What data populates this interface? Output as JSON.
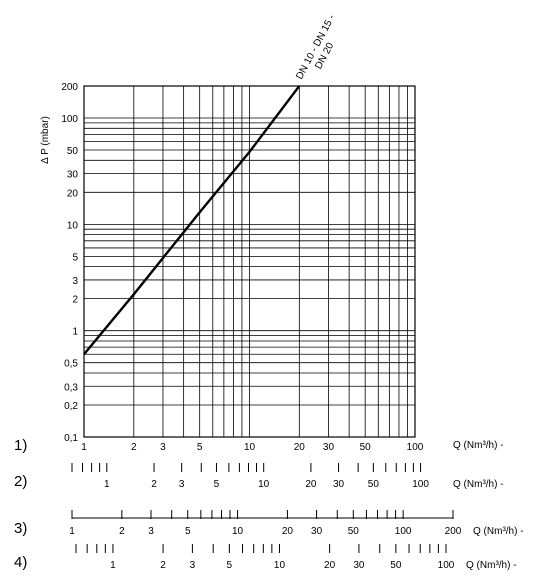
{
  "chart_data": {
    "type": "line",
    "x_scale": "log",
    "y_scale": "log",
    "ylabel": "Δ P (mbar)",
    "xlabel": "Q (Nm³/h) -",
    "xlim": [
      1,
      100
    ],
    "ylim": [
      0.1,
      200
    ],
    "x_ticks": [
      "1",
      "2",
      "3",
      "5",
      "10",
      "20",
      "30",
      "50",
      "100"
    ],
    "y_ticks": [
      "200",
      "100",
      "50",
      "30",
      "20",
      "10",
      "5",
      "3",
      "2",
      "1",
      "0,5",
      "0,3",
      "0,2",
      "0,1"
    ],
    "grid": true,
    "series": [
      {
        "name": "DN 10 - DN 15 - DN 20",
        "x": [
          1,
          2,
          5,
          10,
          20
        ],
        "y": [
          0.6,
          2.2,
          13,
          48,
          200
        ]
      }
    ],
    "extra_scales": [
      {
        "number": "1)",
        "ticks": [
          "1",
          "2",
          "3",
          "5",
          "10",
          "20",
          "30",
          "50",
          "100"
        ],
        "unit": "Q (Nm³/h) -",
        "min": 1,
        "max": 100
      },
      {
        "number": "2)",
        "ticks": [
          "1",
          "2",
          "3",
          "5",
          "10",
          "20",
          "30",
          "50",
          "100"
        ],
        "unit": "Q (Nm³/h) -",
        "min": 0.6,
        "max": 120
      },
      {
        "number": "3)",
        "ticks": [
          "1",
          "2",
          "3",
          "5",
          "10",
          "20",
          "30",
          "50",
          "100",
          "200"
        ],
        "unit": "Q (Nm³/h) -",
        "min": 1,
        "max": 200
      },
      {
        "number": "4)",
        "ticks": [
          "1",
          "2",
          "3",
          "5",
          "10",
          "20",
          "30",
          "50",
          "100"
        ],
        "unit": "Q (Nm³/h) -",
        "min": 0.6,
        "max": 100
      }
    ]
  }
}
